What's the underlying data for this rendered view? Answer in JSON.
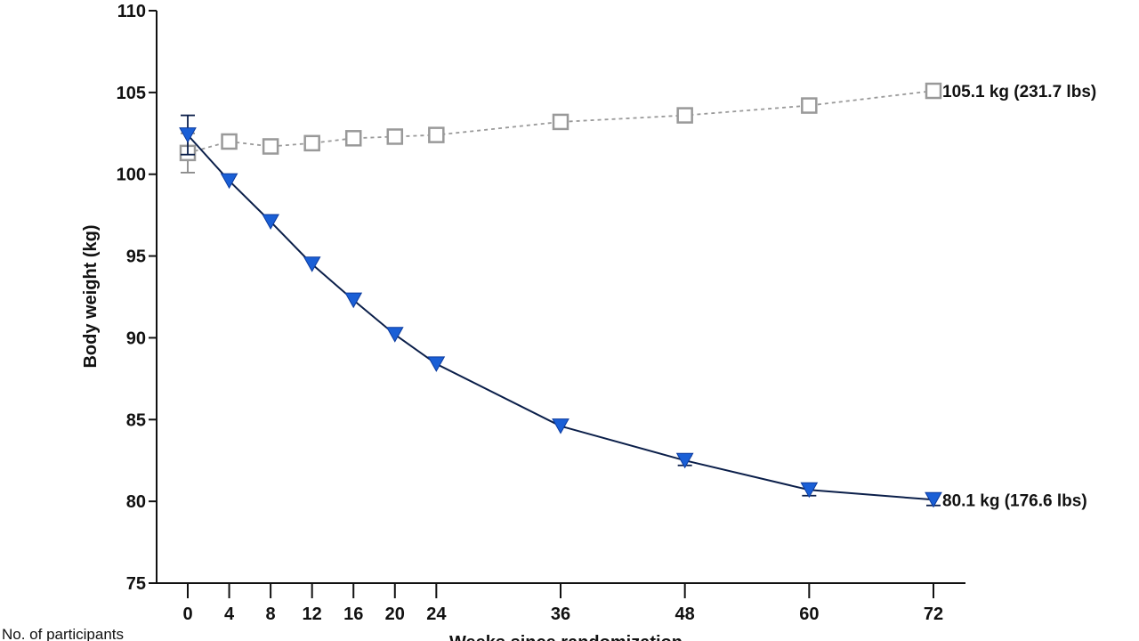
{
  "chart_data": {
    "type": "line",
    "title": "",
    "xlabel": "Weeks since randomization",
    "ylabel": "Body weight (kg)",
    "footer_label": "No. of participants",
    "x": [
      0,
      4,
      8,
      12,
      16,
      20,
      24,
      36,
      48,
      60,
      72
    ],
    "xticks": [
      "0",
      "4",
      "8",
      "12",
      "16",
      "20",
      "24",
      "36",
      "48",
      "60",
      "72"
    ],
    "ylim": [
      75,
      110
    ],
    "yticks": [
      "75",
      "80",
      "85",
      "90",
      "95",
      "100",
      "105",
      "110"
    ],
    "grid": false,
    "series": [
      {
        "marker": "square-open",
        "line": "dotted",
        "color": "#999999",
        "values": [
          101.3,
          102.0,
          101.7,
          101.9,
          102.2,
          102.3,
          102.4,
          103.2,
          103.6,
          104.2,
          105.1
        ],
        "error": [
          1.2,
          0,
          0,
          0,
          0,
          0,
          0,
          0,
          0,
          0.3,
          0.3
        ],
        "end_label": "105.1 kg (231.7 lbs)"
      },
      {
        "marker": "triangle-down-filled",
        "line": "solid",
        "color": "#1a5fd6",
        "line_color": "#0b1f4a",
        "values": [
          102.4,
          99.6,
          97.1,
          94.5,
          92.3,
          90.2,
          88.4,
          84.6,
          82.5,
          80.7,
          80.1
        ],
        "error": [
          1.2,
          0,
          0,
          0,
          0,
          0,
          0,
          0,
          0.3,
          0.35,
          0.35
        ],
        "end_label": "80.1 kg (176.6 lbs)"
      }
    ]
  }
}
